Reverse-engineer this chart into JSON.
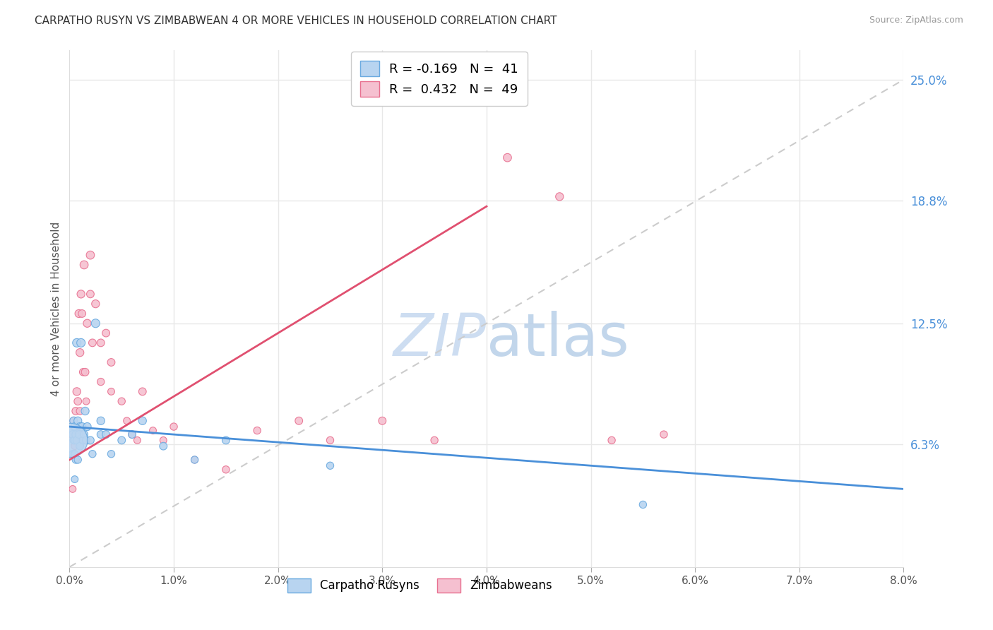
{
  "title": "CARPATHO RUSYN VS ZIMBABWEAN 4 OR MORE VEHICLES IN HOUSEHOLD CORRELATION CHART",
  "source": "Source: ZipAtlas.com",
  "ylabel": "4 or more Vehicles in Household",
  "xlim": [
    0.0,
    0.08
  ],
  "ylim": [
    0.0,
    0.265
  ],
  "xtick_vals": [
    0.0,
    0.01,
    0.02,
    0.03,
    0.04,
    0.05,
    0.06,
    0.07,
    0.08
  ],
  "xtick_labels": [
    "0.0%",
    "1.0%",
    "2.0%",
    "3.0%",
    "4.0%",
    "5.0%",
    "6.0%",
    "7.0%",
    "8.0%"
  ],
  "ytick_vals_right": [
    0.063,
    0.125,
    0.188,
    0.25
  ],
  "ytick_labels_right": [
    "6.3%",
    "12.5%",
    "18.8%",
    "25.0%"
  ],
  "grid_color": "#e8e8e8",
  "background_color": "#ffffff",
  "color_blue_fill": "#b8d4f0",
  "color_blue_edge": "#6aaae0",
  "color_pink_fill": "#f5c0d0",
  "color_pink_edge": "#e87090",
  "color_line_blue": "#4a90d9",
  "color_line_pink": "#e05070",
  "color_diag": "#cccccc",
  "watermark_color": "#d5e8f8",
  "legend_r1": "R = -0.169",
  "legend_n1": "N =  41",
  "legend_r2": "R =  0.432",
  "legend_n2": "N =  49",
  "carpatho_x": [
    0.0002,
    0.0003,
    0.0003,
    0.0004,
    0.0004,
    0.0005,
    0.0005,
    0.0005,
    0.0005,
    0.0006,
    0.0006,
    0.0007,
    0.0007,
    0.0008,
    0.0008,
    0.0009,
    0.001,
    0.001,
    0.0011,
    0.0012,
    0.0013,
    0.0014,
    0.0015,
    0.0016,
    0.0017,
    0.002,
    0.0022,
    0.0025,
    0.003,
    0.003,
    0.0035,
    0.004,
    0.005,
    0.006,
    0.007,
    0.009,
    0.012,
    0.015,
    0.025,
    0.055,
    0.0001
  ],
  "carpatho_y": [
    0.07,
    0.068,
    0.058,
    0.075,
    0.065,
    0.072,
    0.065,
    0.058,
    0.045,
    0.068,
    0.055,
    0.115,
    0.065,
    0.075,
    0.055,
    0.068,
    0.072,
    0.062,
    0.115,
    0.072,
    0.065,
    0.068,
    0.08,
    0.065,
    0.072,
    0.065,
    0.058,
    0.125,
    0.075,
    0.068,
    0.068,
    0.058,
    0.065,
    0.068,
    0.075,
    0.062,
    0.055,
    0.065,
    0.052,
    0.032,
    0.065
  ],
  "carpatho_size": [
    70,
    60,
    55,
    65,
    60,
    65,
    60,
    55,
    50,
    60,
    55,
    75,
    60,
    65,
    55,
    60,
    65,
    60,
    75,
    65,
    60,
    60,
    65,
    60,
    65,
    60,
    55,
    75,
    65,
    60,
    60,
    55,
    60,
    60,
    65,
    60,
    55,
    60,
    55,
    55,
    1200
  ],
  "zimbabwe_x": [
    0.0002,
    0.0003,
    0.0004,
    0.0005,
    0.0005,
    0.0006,
    0.0006,
    0.0007,
    0.0008,
    0.0008,
    0.0009,
    0.001,
    0.001,
    0.0011,
    0.0012,
    0.0013,
    0.0014,
    0.0015,
    0.0016,
    0.0017,
    0.002,
    0.002,
    0.0022,
    0.0025,
    0.003,
    0.003,
    0.0035,
    0.004,
    0.004,
    0.005,
    0.0055,
    0.006,
    0.0065,
    0.007,
    0.008,
    0.009,
    0.01,
    0.012,
    0.015,
    0.018,
    0.022,
    0.025,
    0.03,
    0.035,
    0.038,
    0.042,
    0.047,
    0.052,
    0.057
  ],
  "zimbabwe_y": [
    0.068,
    0.04,
    0.075,
    0.072,
    0.062,
    0.08,
    0.065,
    0.09,
    0.085,
    0.07,
    0.13,
    0.11,
    0.08,
    0.14,
    0.13,
    0.1,
    0.155,
    0.1,
    0.085,
    0.125,
    0.16,
    0.14,
    0.115,
    0.135,
    0.115,
    0.095,
    0.12,
    0.105,
    0.09,
    0.085,
    0.075,
    0.068,
    0.065,
    0.09,
    0.07,
    0.065,
    0.072,
    0.055,
    0.05,
    0.07,
    0.075,
    0.065,
    0.075,
    0.065,
    0.24,
    0.21,
    0.19,
    0.065,
    0.068
  ],
  "zimbabwe_size": [
    55,
    50,
    55,
    55,
    50,
    60,
    50,
    65,
    60,
    50,
    65,
    65,
    55,
    65,
    60,
    55,
    70,
    60,
    50,
    65,
    70,
    60,
    60,
    65,
    60,
    55,
    60,
    60,
    50,
    55,
    50,
    55,
    50,
    60,
    50,
    50,
    55,
    50,
    55,
    55,
    60,
    55,
    60,
    55,
    75,
    70,
    65,
    55,
    55
  ],
  "trend_blue_x0": 0.0,
  "trend_blue_y0": 0.072,
  "trend_blue_x1": 0.08,
  "trend_blue_y1": 0.04,
  "trend_pink_x0": 0.0,
  "trend_pink_y0": 0.055,
  "trend_pink_x1": 0.04,
  "trend_pink_y1": 0.185
}
